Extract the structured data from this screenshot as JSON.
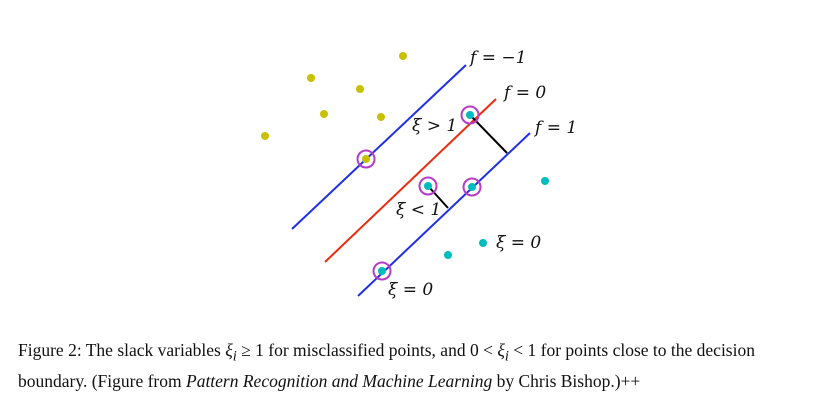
{
  "figure": {
    "line_labels": {
      "f_neg": "f = −1",
      "f_zero": "f = 0",
      "f_pos": "f = 1"
    },
    "annotations": {
      "xi_gt_1": "ξ > 1",
      "xi_lt_1": "ξ < 1",
      "xi_eq_0_right": "ξ = 0",
      "xi_eq_0_bottom": "ξ = 0"
    },
    "colors": {
      "class_a": "#c8c000",
      "class_b": "#00bcbc",
      "margin_line": "#1f2fe6",
      "boundary_line": "#ec2b0c",
      "support_circle": "#b43cc8",
      "slack_segment": "#000000"
    }
  },
  "caption": {
    "part1": "Figure 2: The slack variables ",
    "xi_i": "ξ",
    "sub_i": "i",
    "ge_one": " ≥ 1",
    "part2": " for misclassified points, and ",
    "zero_lt": "0 < ",
    "lt_one": " < 1",
    "part3": " for points close to the decision boundary. (Figure from ",
    "book_title": "Pattern Recognition and Machine Learning",
    "part4": " by Chris Bishop.)++"
  }
}
